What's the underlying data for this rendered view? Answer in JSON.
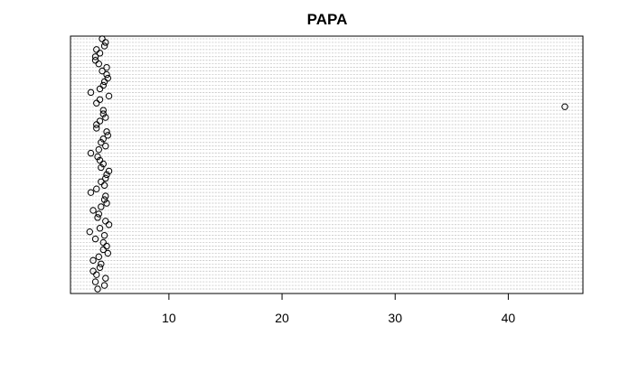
{
  "chart_data": {
    "type": "dotchart",
    "title": "PAPA",
    "xlabel": "",
    "ylabel": "",
    "xlim": [
      1.3,
      46.6
    ],
    "xticks": [
      10,
      20,
      30,
      40
    ],
    "grid": "dotted horizontal lines, one per observation",
    "x": [
      3.7,
      4.3,
      3.5,
      4.4,
      3.6,
      3.3,
      3.9,
      4.0,
      3.3,
      3.8,
      4.6,
      4.2,
      4.5,
      4.2,
      3.5,
      4.3,
      3.0,
      3.9,
      4.7,
      4.4,
      3.7,
      3.8,
      3.3,
      4.0,
      4.5,
      4.3,
      4.4,
      3.1,
      3.6,
      4.3,
      4.0,
      4.4,
      4.5,
      4.7,
      4.0,
      4.2,
      3.9,
      3.7,
      3.1,
      3.8,
      4.4,
      4.0,
      4.2,
      4.6,
      4.5,
      3.6,
      3.6,
      3.9,
      4.4,
      4.2,
      4.2,
      45.0,
      3.6,
      3.9,
      4.7,
      3.1,
      3.9,
      4.2,
      4.3,
      4.6,
      4.5,
      4.1,
      4.5,
      3.8,
      3.5,
      3.5,
      3.9,
      3.6,
      4.3,
      4.4,
      4.1
    ]
  }
}
